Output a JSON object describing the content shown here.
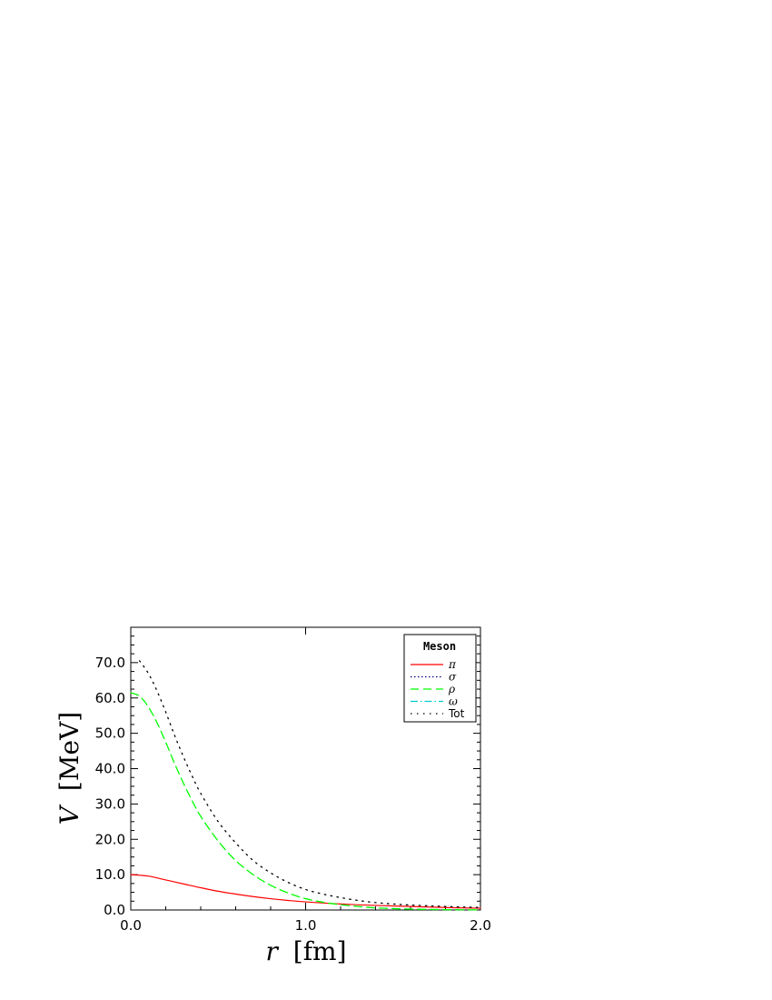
{
  "chart_data": {
    "type": "line",
    "xlabel_var": "r",
    "xlabel_unit": "[fm]",
    "ylabel_var": "V",
    "ylabel_unit": "[MeV]",
    "xlim": [
      0.0,
      2.0
    ],
    "ylim": [
      0.0,
      80.0
    ],
    "xticks": [
      0.0,
      1.0,
      2.0
    ],
    "xtick_labels": [
      "0.0",
      "1.0",
      "2.0"
    ],
    "yticks": [
      0,
      10,
      20,
      30,
      40,
      50,
      60,
      70
    ],
    "ytick_labels": [
      "0.0",
      "10.0",
      "20.0",
      "30.0",
      "40.0",
      "50.0",
      "60.0",
      "70.0"
    ],
    "grid": false,
    "legend": {
      "title": "Meson",
      "placement": "top-right"
    },
    "series": [
      {
        "name": "π",
        "color": "#ff0000",
        "style": "solid",
        "x": [
          0.0,
          0.1,
          0.2,
          0.3,
          0.4,
          0.5,
          0.6,
          0.7,
          0.8,
          0.9,
          1.0,
          1.2,
          1.4,
          1.6,
          1.8,
          2.0
        ],
        "y": [
          10.0,
          9.6,
          8.5,
          7.4,
          6.3,
          5.3,
          4.5,
          3.8,
          3.2,
          2.7,
          2.3,
          1.7,
          1.3,
          1.0,
          0.7,
          0.5
        ]
      },
      {
        "name": "σ",
        "color": "#00008b",
        "style": "dotted",
        "x": [],
        "y": []
      },
      {
        "name": "ρ",
        "color": "#00ff00",
        "style": "dashed",
        "x": [
          0.0,
          0.05,
          0.1,
          0.15,
          0.2,
          0.25,
          0.3,
          0.35,
          0.4,
          0.5,
          0.6,
          0.7,
          0.8,
          0.9,
          1.0,
          1.1,
          1.2,
          1.3,
          1.4,
          1.5,
          1.6,
          1.8,
          2.0
        ],
        "y": [
          61.5,
          60.5,
          57.5,
          53.0,
          47.5,
          41.5,
          36.0,
          31.0,
          26.5,
          19.5,
          14.0,
          10.0,
          7.0,
          4.8,
          3.2,
          2.2,
          1.5,
          1.0,
          0.6,
          0.4,
          0.25,
          0.1,
          0.05
        ]
      },
      {
        "name": "ω",
        "color": "#00cccc",
        "style": "dashdot",
        "x": [],
        "y": []
      },
      {
        "name": "Tot",
        "color": "#000000",
        "style": "dotted-sparse",
        "x": [
          0.05,
          0.1,
          0.15,
          0.2,
          0.25,
          0.3,
          0.35,
          0.4,
          0.5,
          0.6,
          0.7,
          0.8,
          0.9,
          1.0,
          1.1,
          1.2,
          1.3,
          1.4,
          1.5,
          1.6,
          1.8,
          2.0
        ],
        "y": [
          70.5,
          67.0,
          62.0,
          56.0,
          49.5,
          43.5,
          38.0,
          33.0,
          25.0,
          19.0,
          14.0,
          10.5,
          7.8,
          5.8,
          4.5,
          3.5,
          2.7,
          2.1,
          1.7,
          1.4,
          1.0,
          0.7
        ]
      }
    ]
  }
}
